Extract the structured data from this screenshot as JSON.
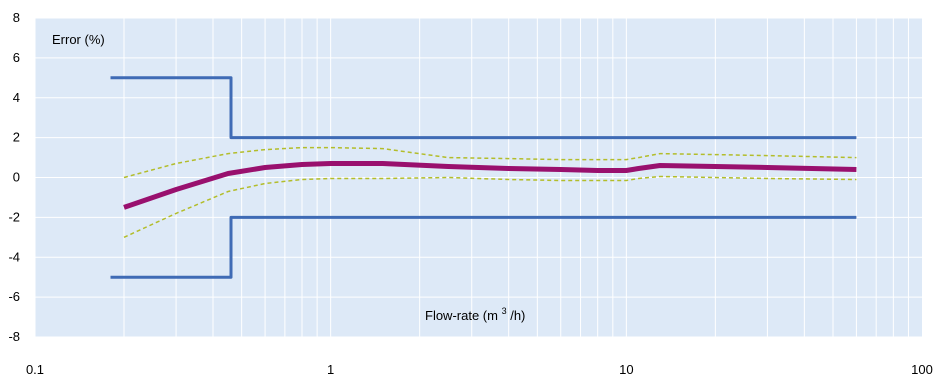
{
  "chart_data": {
    "type": "line",
    "xscale": "log",
    "xlim": [
      0.1,
      100
    ],
    "ylim": [
      -8,
      8
    ],
    "x_ticks": [
      0.1,
      1,
      10,
      100
    ],
    "x_tick_labels": [
      "0.1",
      "1",
      "10",
      "100"
    ],
    "y_ticks": [
      -8,
      -6,
      -4,
      -2,
      0,
      2,
      4,
      6,
      8
    ],
    "y_tick_labels": [
      "-8",
      "-6",
      "-4",
      "-2",
      "0",
      "2",
      "4",
      "6",
      "8"
    ],
    "ylabel": "Error (%)",
    "xlabel_main": "Flow-rate (m",
    "xlabel_sup": "3",
    "xlabel_end": "/h)",
    "grid": true,
    "legend": "none",
    "colors": {
      "plot_background": "#dde9f7",
      "grid": "#ffffff",
      "limits": "#3f6bb5",
      "error_curve": "#99106e",
      "uncertainty": "#b3bd2a"
    },
    "series": [
      {
        "x": [
          0.18,
          0.46,
          0.46,
          60
        ],
        "y": [
          5,
          5,
          2,
          2
        ]
      },
      {
        "x": [
          0.18,
          0.46,
          0.46,
          60
        ],
        "y": [
          -5,
          -5,
          -2,
          -2
        ]
      },
      {
        "x": [
          0.2,
          0.3,
          0.45,
          0.6,
          0.8,
          1.0,
          1.5,
          2.5,
          4,
          6,
          8,
          10,
          11,
          13,
          20,
          30,
          60
        ],
        "y": [
          -1.5,
          -0.6,
          0.2,
          0.5,
          0.65,
          0.7,
          0.7,
          0.55,
          0.45,
          0.4,
          0.35,
          0.35,
          0.45,
          0.6,
          0.55,
          0.5,
          0.4
        ]
      },
      {
        "x": [
          0.2,
          0.3,
          0.45,
          0.6,
          0.8,
          1.0,
          1.5,
          2.5,
          4,
          6,
          8,
          10,
          11,
          13,
          20,
          30,
          60
        ],
        "y": [
          0.0,
          0.7,
          1.2,
          1.4,
          1.5,
          1.5,
          1.45,
          1.0,
          0.95,
          0.9,
          0.9,
          0.9,
          1.0,
          1.2,
          1.15,
          1.1,
          1.0
        ]
      },
      {
        "x": [
          0.2,
          0.3,
          0.45,
          0.6,
          0.8,
          1.0,
          1.5,
          2.5,
          4,
          6,
          8,
          10,
          11,
          13,
          20,
          30,
          60
        ],
        "y": [
          -3.0,
          -1.8,
          -0.7,
          -0.3,
          -0.1,
          -0.05,
          -0.05,
          0.0,
          -0.1,
          -0.15,
          -0.15,
          -0.15,
          -0.05,
          0.05,
          0.0,
          -0.05,
          -0.1
        ]
      }
    ]
  }
}
